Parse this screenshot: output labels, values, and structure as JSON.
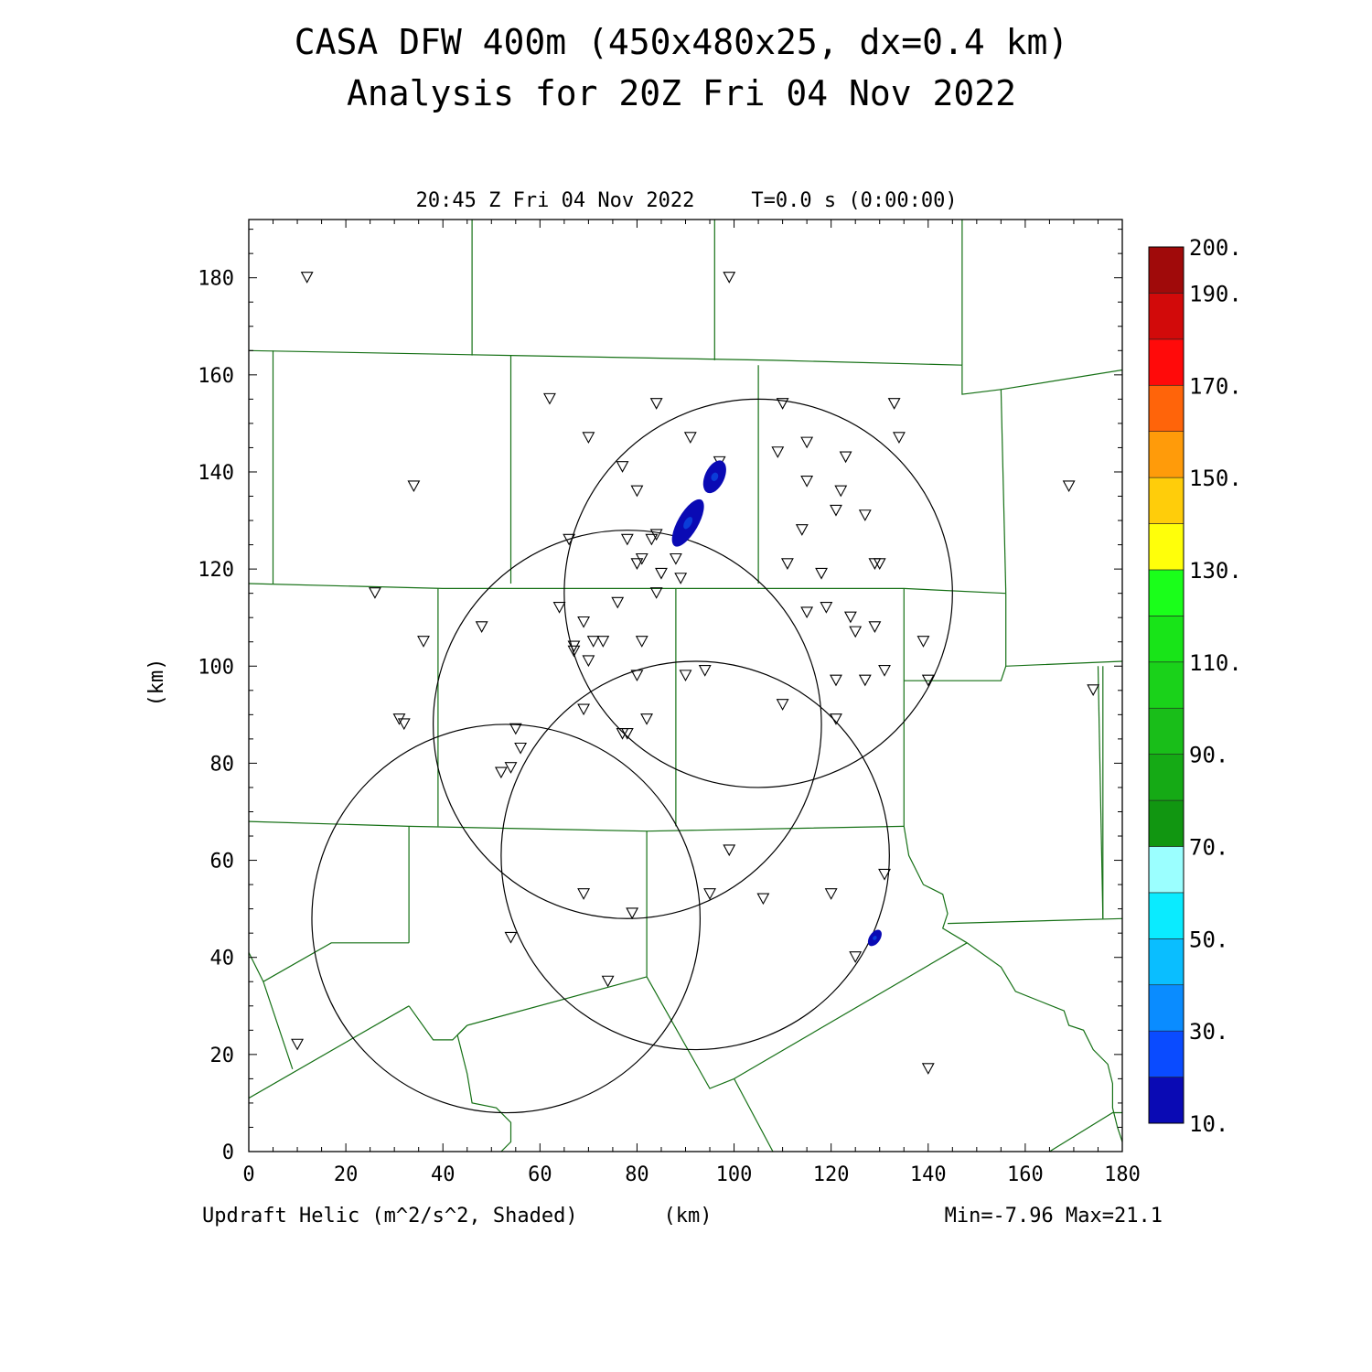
{
  "title_line1": "CASA DFW 400m (450x480x25, dx=0.4 km)",
  "title_line2": "Analysis for 20Z Fri 04 Nov 2022",
  "valid_time": "20:45 Z Fri 04 Nov 2022",
  "forecast_time": "T=0.0 s (0:00:00)",
  "field_label": "Updraft Helic (m^2/s^2, Shaded)",
  "x_unit": "(km)",
  "y_unit": "(km)",
  "min_max": "Min=-7.96 Max=21.1",
  "axes": {
    "x_range": [
      0,
      180
    ],
    "y_range": [
      0,
      192
    ],
    "x_ticks": [
      "0",
      "20",
      "40",
      "60",
      "80",
      "100",
      "120",
      "140",
      "160",
      "180"
    ],
    "y_ticks": [
      "0",
      "20",
      "40",
      "60",
      "80",
      "100",
      "120",
      "140",
      "160",
      "180"
    ]
  },
  "colorbar": {
    "labels": [
      "10.",
      "30.",
      "50.",
      "70.",
      "90.",
      "110.",
      "130.",
      "150.",
      "170.",
      "190.",
      "200."
    ],
    "colors": [
      "#0a0ab4",
      "#0a4bff",
      "#0a8cff",
      "#0abeff",
      "#0aebff",
      "#9bffff",
      "#119611",
      "#15aa15",
      "#19be19",
      "#1ad21a",
      "#18e418",
      "#1aff1a",
      "#ffff0a",
      "#ffcd0a",
      "#ff9b0a",
      "#ff640a",
      "#ff0a0a",
      "#d20a0a",
      "#a00a0a"
    ]
  },
  "colors": {
    "county_lines": "#157015",
    "range_rings": "#000000",
    "helicity": "#0a0ab4"
  },
  "radar_rings_km": [
    {
      "cx": 105,
      "cy": 115,
      "r": 40
    },
    {
      "cx": 78,
      "cy": 88,
      "r": 40
    },
    {
      "cx": 92,
      "cy": 61,
      "r": 40
    },
    {
      "cx": 53,
      "cy": 48,
      "r": 40
    }
  ],
  "stations_km": [
    [
      12,
      180
    ],
    [
      99,
      180
    ],
    [
      62,
      155
    ],
    [
      84,
      154
    ],
    [
      110,
      154
    ],
    [
      133,
      154
    ],
    [
      70,
      147
    ],
    [
      91,
      147
    ],
    [
      115,
      146
    ],
    [
      134,
      147
    ],
    [
      34,
      137
    ],
    [
      169,
      137
    ],
    [
      77,
      141
    ],
    [
      97,
      142
    ],
    [
      109,
      144
    ],
    [
      123,
      143
    ],
    [
      80,
      136
    ],
    [
      115,
      138
    ],
    [
      122,
      136
    ],
    [
      121,
      132
    ],
    [
      127,
      131
    ],
    [
      114,
      128
    ],
    [
      66,
      126
    ],
    [
      78,
      126
    ],
    [
      83,
      126
    ],
    [
      84,
      127
    ],
    [
      88,
      122
    ],
    [
      80,
      121
    ],
    [
      81,
      122
    ],
    [
      85,
      119
    ],
    [
      89,
      118
    ],
    [
      111,
      121
    ],
    [
      118,
      119
    ],
    [
      129,
      121
    ],
    [
      130,
      121
    ],
    [
      26,
      115
    ],
    [
      84,
      115
    ],
    [
      64,
      112
    ],
    [
      76,
      113
    ],
    [
      115,
      111
    ],
    [
      119,
      112
    ],
    [
      124,
      110
    ],
    [
      125,
      107
    ],
    [
      129,
      108
    ],
    [
      139,
      105
    ],
    [
      36,
      105
    ],
    [
      48,
      108
    ],
    [
      69,
      109
    ],
    [
      67,
      104
    ],
    [
      71,
      105
    ],
    [
      73,
      105
    ],
    [
      67,
      103
    ],
    [
      70,
      101
    ],
    [
      81,
      105
    ],
    [
      80,
      98
    ],
    [
      90,
      98
    ],
    [
      94,
      99
    ],
    [
      121,
      97
    ],
    [
      127,
      97
    ],
    [
      131,
      99
    ],
    [
      140,
      97
    ],
    [
      174,
      95
    ],
    [
      31,
      89
    ],
    [
      32,
      88
    ],
    [
      69,
      91
    ],
    [
      77,
      86
    ],
    [
      78,
      86
    ],
    [
      82,
      89
    ],
    [
      110,
      92
    ],
    [
      121,
      89
    ],
    [
      55,
      87
    ],
    [
      56,
      83
    ],
    [
      52,
      78
    ],
    [
      54,
      79
    ],
    [
      99,
      62
    ],
    [
      131,
      57
    ],
    [
      69,
      53
    ],
    [
      95,
      53
    ],
    [
      106,
      52
    ],
    [
      120,
      53
    ],
    [
      79,
      49
    ],
    [
      54,
      44
    ],
    [
      125,
      40
    ],
    [
      74,
      35
    ],
    [
      10,
      22
    ],
    [
      140,
      17
    ]
  ],
  "county_lines_km": [
    [
      [
        0,
        165
      ],
      [
        54,
        164
      ],
      [
        108,
        163
      ],
      [
        147,
        162
      ]
    ],
    [
      [
        46,
        192
      ],
      [
        46,
        164
      ]
    ],
    [
      [
        96,
        192
      ],
      [
        96,
        163
      ]
    ],
    [
      [
        147,
        192
      ],
      [
        147,
        162
      ]
    ],
    [
      [
        5,
        165
      ],
      [
        5,
        117
      ]
    ],
    [
      [
        54,
        164
      ],
      [
        54,
        117
      ]
    ],
    [
      [
        105,
        162
      ],
      [
        105,
        117
      ]
    ],
    [
      [
        0,
        117
      ],
      [
        40,
        116
      ],
      [
        88,
        116
      ],
      [
        135,
        116
      ],
      [
        156,
        115
      ]
    ],
    [
      [
        147,
        162
      ],
      [
        147,
        156
      ],
      [
        155,
        157
      ]
    ],
    [
      [
        155,
        157
      ],
      [
        156,
        115
      ]
    ],
    [
      [
        155,
        157
      ],
      [
        180,
        161
      ]
    ],
    [
      [
        156,
        115
      ],
      [
        156,
        100
      ],
      [
        180,
        101
      ]
    ],
    [
      [
        156,
        100
      ],
      [
        155,
        97
      ],
      [
        135,
        97
      ]
    ],
    [
      [
        135,
        116
      ],
      [
        135,
        67
      ]
    ],
    [
      [
        39,
        116
      ],
      [
        39,
        67
      ]
    ],
    [
      [
        88,
        116
      ],
      [
        88,
        67
      ]
    ],
    [
      [
        0,
        68
      ],
      [
        33,
        67
      ],
      [
        82,
        66
      ],
      [
        135,
        67
      ]
    ],
    [
      [
        33,
        67
      ],
      [
        33,
        43
      ]
    ],
    [
      [
        82,
        66
      ],
      [
        82,
        36
      ]
    ],
    [
      [
        33,
        43
      ],
      [
        17,
        43
      ],
      [
        3,
        35
      ]
    ],
    [
      [
        0,
        41
      ],
      [
        3,
        35
      ],
      [
        9,
        17
      ]
    ],
    [
      [
        0,
        11
      ],
      [
        33,
        30
      ]
    ],
    [
      [
        33,
        30
      ],
      [
        38,
        23
      ],
      [
        42,
        23
      ],
      [
        45,
        26
      ]
    ],
    [
      [
        45,
        26
      ],
      [
        82,
        36
      ]
    ],
    [
      [
        45,
        26
      ],
      [
        43,
        24
      ],
      [
        45,
        16
      ],
      [
        46,
        10
      ],
      [
        51,
        9
      ],
      [
        54,
        6
      ],
      [
        54,
        2
      ],
      [
        52,
        0
      ]
    ],
    [
      [
        82,
        36
      ],
      [
        95,
        13
      ],
      [
        100,
        15
      ]
    ],
    [
      [
        100,
        15
      ],
      [
        148,
        43
      ]
    ],
    [
      [
        100,
        15
      ],
      [
        108,
        0
      ]
    ],
    [
      [
        135,
        67
      ],
      [
        136,
        61
      ],
      [
        139,
        55
      ],
      [
        143,
        53
      ],
      [
        144,
        49
      ],
      [
        143,
        46
      ],
      [
        148,
        43
      ],
      [
        155,
        38
      ],
      [
        158,
        33
      ],
      [
        163,
        31
      ],
      [
        168,
        29
      ],
      [
        169,
        26
      ],
      [
        172,
        25
      ],
      [
        174,
        21
      ],
      [
        177,
        18
      ],
      [
        178,
        14
      ],
      [
        178,
        9
      ],
      [
        179,
        5
      ],
      [
        180,
        2
      ]
    ],
    [
      [
        144,
        47
      ],
      [
        180,
        48
      ]
    ],
    [
      [
        176,
        48
      ],
      [
        175,
        100
      ]
    ],
    [
      [
        176,
        48
      ],
      [
        176,
        100
      ]
    ],
    [
      [
        165,
        0
      ],
      [
        178,
        8
      ],
      [
        180,
        8
      ]
    ]
  ],
  "helicity_cells_km": [
    {
      "cx": 96,
      "cy": 139,
      "rx": 2.0,
      "ry": 3.6,
      "rot": 25
    },
    {
      "cx": 90.5,
      "cy": 129.5,
      "rx": 2.1,
      "ry": 5.5,
      "rot": 30
    },
    {
      "cx": 129,
      "cy": 44,
      "rx": 1.1,
      "ry": 1.9,
      "rot": 35
    }
  ]
}
